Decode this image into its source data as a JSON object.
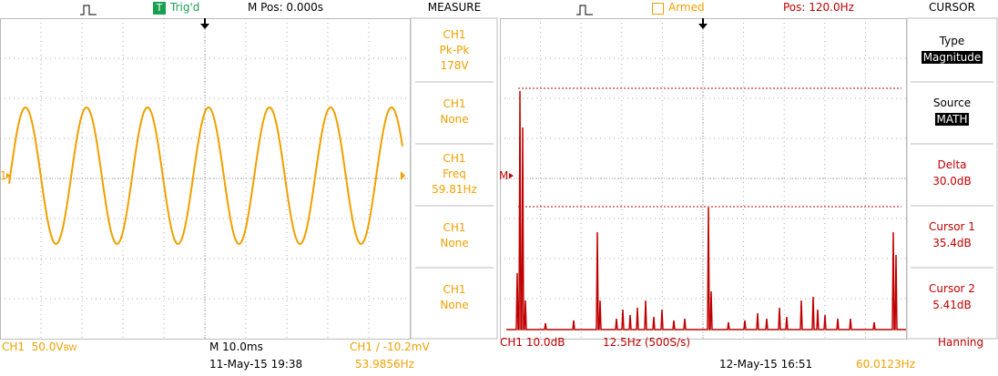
{
  "left": {
    "header": {
      "trigger_icon": "T",
      "trigger": "Trig'd",
      "position": "M Pos: 0.000s",
      "menu_title": "MEASURE"
    },
    "channel_marker": "1",
    "menu": [
      [
        "CH1",
        "Pk-Pk",
        "178V"
      ],
      [
        "CH1",
        "None"
      ],
      [
        "CH1",
        "Freq",
        "59.81Hz"
      ],
      [
        "CH1",
        "None"
      ],
      [
        "CH1",
        "None"
      ]
    ],
    "footer": {
      "channel": "CH1  50.0V",
      "bandwidth": "BW",
      "timebase": "M 10.0ms",
      "trigger": "CH1 / -10.2mV",
      "date": "11-May-15 19:38",
      "frequency": "53.9856Hz"
    }
  },
  "right": {
    "header": {
      "status": "Armed",
      "position": "Pos: 120.0Hz",
      "menu_title": "CURSOR"
    },
    "math_marker": "M",
    "menu": [
      {
        "label": "Type",
        "value": "Magnitude",
        "style": "inverse"
      },
      {
        "label": "Source",
        "value": "MATH",
        "style": "inverse"
      },
      {
        "label": "Delta",
        "value": "30.0dB",
        "style": "red"
      },
      {
        "label": "Cursor 1",
        "value": "35.4dB",
        "style": "red"
      },
      {
        "label": "Cursor 2",
        "value": "5.41dB",
        "style": "red"
      }
    ],
    "footer": {
      "channel": "CH1 10.0dB",
      "span": "12.5Hz (500S/s)",
      "window": "Hanning",
      "date": "12-May-15 16:51",
      "frequency": "60.0123Hz"
    }
  }
}
